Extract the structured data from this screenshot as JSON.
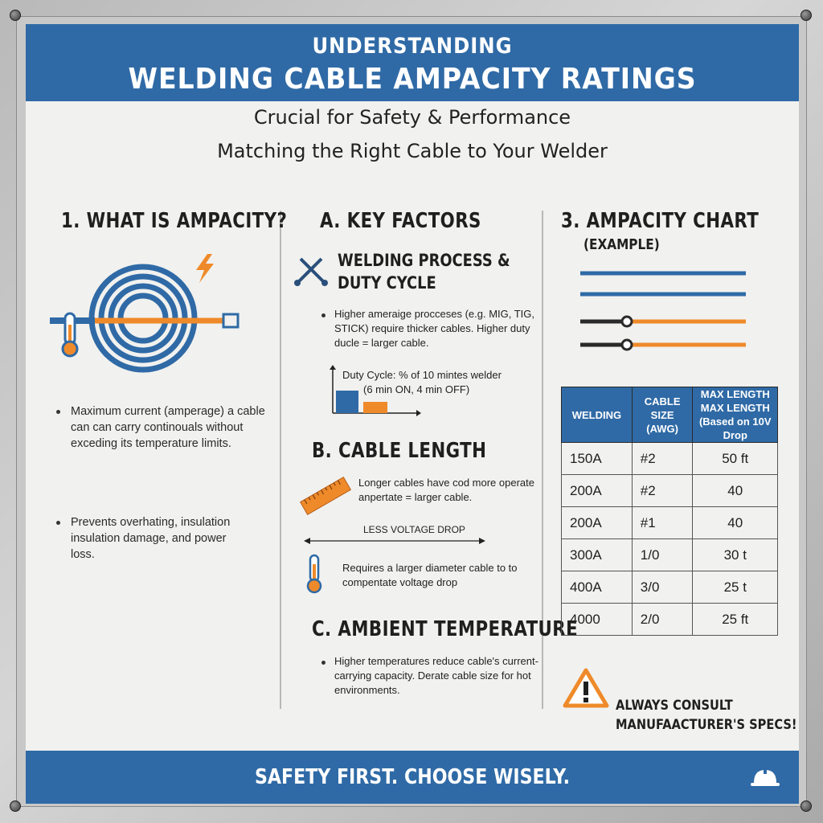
{
  "header": {
    "pre_title": "UNDERSTANDING",
    "title": "WELDING CABLE AMPACITY RATINGS"
  },
  "subtitle_1": "Crucial for Safety & Performance",
  "subtitle_2": "Matching the Right Cable to Your Welder",
  "col1": {
    "title": "1. WHAT IS AMPACITY?",
    "bullet_1": "Maximum current (amperage) a cable can can carry continouals without exceding its temperature limits.",
    "bullet_2": "Prevents overhating, insulation insulation damage, and power loss."
  },
  "col2": {
    "title": "A. KEY FACTORS",
    "process_head_1": "WELDING PROCESS &",
    "process_head_2": "DUTY CYCLE",
    "process_bullet": "Higher ameraige procceses (e.g. MIG, TIG, STICK) require thicker cables. Higher duty ducle = larger cable.",
    "duty_note_1": "Duty Cycle: % of 10 mintes welder",
    "duty_note_2": "(6 min ON, 4 min OFF)",
    "length_title": "B. CABLE LENGTH",
    "length_text": "Longer cables have cod more operate anpertate = larger cable.",
    "voltage_label": "LESS VOLTAGE DROP",
    "diameter_text": "Requires a larger diameter cable to to compentate voltage drop",
    "temp_title": "C. AMBIENT TEMPERATURE",
    "temp_bullet": "Higher temperatures reduce cable's current-carrying capacity. Derate cable size for hot environments."
  },
  "col3": {
    "title": "3. AMPACITY CHART",
    "title_sub": "(EXAMPLE)",
    "table": {
      "headers": [
        "WELDING",
        "CABLE SIZE (AWG)",
        "MAX LENGTH MAX LENGTH (Based on 10V Drop"
      ],
      "rows": [
        [
          "150A",
          "#2",
          "50 ft"
        ],
        [
          "200A",
          "#2",
          "40"
        ],
        [
          "200A",
          "#1",
          "40"
        ],
        [
          "300A",
          "1/0",
          "30 t"
        ],
        [
          "400A",
          "3/0",
          "25 t"
        ],
        [
          "4000",
          "2/0",
          "25 ft"
        ]
      ]
    },
    "warning_1": "ALWAYS CONSULT",
    "warning_2": "MANUFAACTURER'S SPECS!"
  },
  "footer": {
    "text": "SAFETY FIRST. CHOOSE WISELY."
  },
  "colors": {
    "blue": "#2f6aa6",
    "orange": "#ef8a2a",
    "dark": "#2a2a2a"
  },
  "icons": [
    "bolt-icon",
    "cable-coil-icon",
    "thermometer-icon",
    "welding-torch-icon",
    "ruler-icon",
    "warning-icon",
    "hard-hat-icon"
  ]
}
